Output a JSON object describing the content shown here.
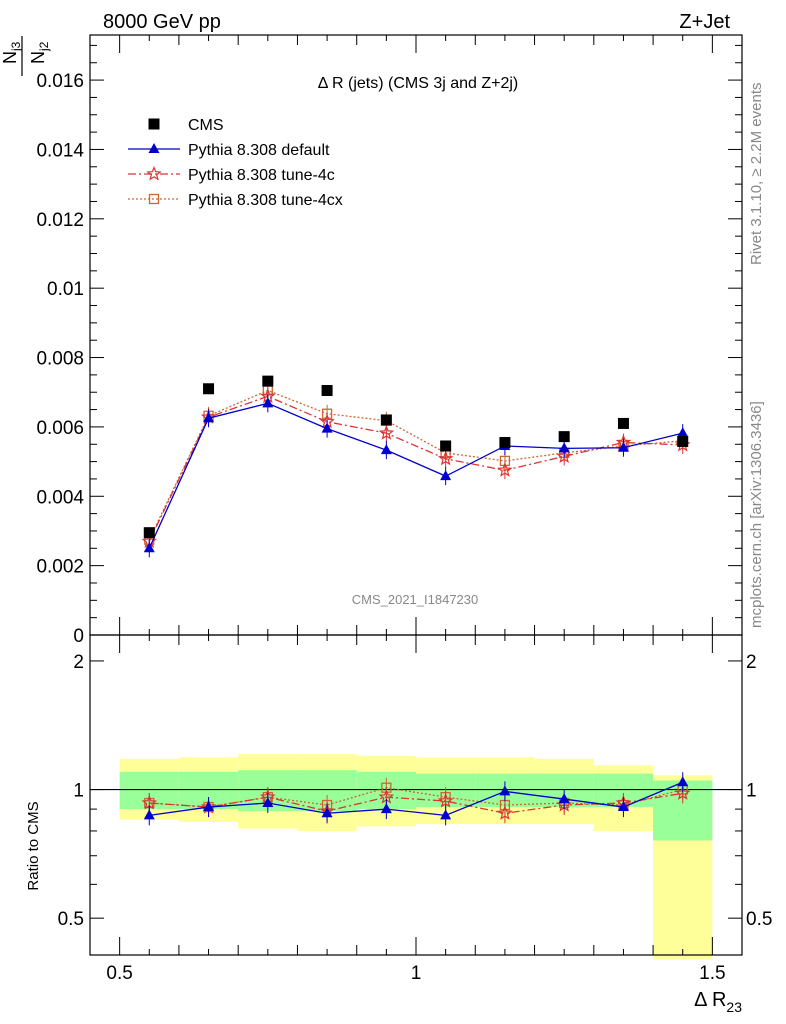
{
  "header": {
    "left": "8000 GeV pp",
    "right": "Z+Jet"
  },
  "side_text": {
    "rivet": "Rivet 3.1.10, ≥ 2.2M events",
    "mcplots": "mcplots.cern.ch [arXiv:1306.3436]"
  },
  "chart_data": [
    {
      "type": "scatter",
      "title": "Δ R (jets) (CMS 3j and Z+2j)",
      "watermark": "CMS_2021_I1847230",
      "ylabel": "N_j3 / N_j2",
      "ylim": [
        0,
        0.0173
      ],
      "yticks": [
        "0",
        "0.002",
        "0.004",
        "0.006",
        "0.008",
        "0.01",
        "0.012",
        "0.014",
        "0.016"
      ],
      "xlim": [
        0.45,
        1.55
      ],
      "legend_position": "top-left",
      "x": [
        0.55,
        0.65,
        0.75,
        0.85,
        0.95,
        1.05,
        1.15,
        1.25,
        1.35,
        1.45
      ],
      "series": [
        {
          "name": "CMS",
          "color": "#000000",
          "marker": "square",
          "values": [
            0.00295,
            0.0071,
            0.00732,
            0.00705,
            0.0062,
            0.00545,
            0.00555,
            0.00572,
            0.0061,
            0.00558
          ]
        },
        {
          "name": "Pythia 8.308 default",
          "color": "#0000cc",
          "marker": "triangle",
          "line": "solid",
          "values": [
            0.0025,
            0.00625,
            0.00668,
            0.00595,
            0.00533,
            0.00458,
            0.00545,
            0.00538,
            0.0054,
            0.00582
          ]
        },
        {
          "name": "Pythia 8.308 tune-4c",
          "color": "#dd3333",
          "marker": "star",
          "line": "dashdot",
          "values": [
            0.0027,
            0.00628,
            0.00688,
            0.00615,
            0.00582,
            0.00508,
            0.00475,
            0.00515,
            0.00555,
            0.00548
          ]
        },
        {
          "name": "Pythia 8.308 tune-4cx",
          "color": "#cc6633",
          "marker": "open-square",
          "line": "dotted",
          "values": [
            0.00275,
            0.00632,
            0.00705,
            0.00638,
            0.00618,
            0.00525,
            0.00502,
            0.00525,
            0.00545,
            0.0056
          ]
        }
      ]
    },
    {
      "type": "line",
      "ylabel": "Ratio to CMS",
      "ylim": [
        0.41,
        2.3
      ],
      "yticks": [
        "0.5",
        "1",
        "2"
      ],
      "xlabel": "Δ R23",
      "xlim": [
        0.45,
        1.55
      ],
      "xticks": [
        "0.5",
        "1",
        "1.5"
      ],
      "bins": [
        [
          0.5,
          0.6
        ],
        [
          0.6,
          0.7
        ],
        [
          0.7,
          0.8
        ],
        [
          0.8,
          0.9
        ],
        [
          0.9,
          1.0
        ],
        [
          1.0,
          1.1
        ],
        [
          1.1,
          1.2
        ],
        [
          1.2,
          1.3
        ],
        [
          1.3,
          1.4
        ],
        [
          1.4,
          1.5
        ]
      ],
      "band_green": [
        [
          0.9,
          1.1
        ],
        [
          0.9,
          1.1
        ],
        [
          0.89,
          1.11
        ],
        [
          0.89,
          1.11
        ],
        [
          0.9,
          1.1
        ],
        [
          0.91,
          1.09
        ],
        [
          0.91,
          1.09
        ],
        [
          0.91,
          1.09
        ],
        [
          0.91,
          1.09
        ],
        [
          0.76,
          1.05
        ]
      ],
      "band_yellow": [
        [
          0.85,
          1.18
        ],
        [
          0.84,
          1.19
        ],
        [
          0.81,
          1.21
        ],
        [
          0.8,
          1.21
        ],
        [
          0.82,
          1.2
        ],
        [
          0.83,
          1.19
        ],
        [
          0.83,
          1.19
        ],
        [
          0.83,
          1.18
        ],
        [
          0.8,
          1.14
        ],
        [
          0.4,
          1.08
        ]
      ],
      "x": [
        0.55,
        0.65,
        0.75,
        0.85,
        0.95,
        1.05,
        1.15,
        1.25,
        1.35,
        1.45
      ],
      "series": [
        {
          "name": "Pythia 8.308 default",
          "color": "#0000cc",
          "values": [
            0.87,
            0.91,
            0.93,
            0.88,
            0.9,
            0.87,
            0.99,
            0.95,
            0.91,
            1.04
          ]
        },
        {
          "name": "Pythia 8.308 tune-4c",
          "color": "#dd3333",
          "values": [
            0.93,
            0.91,
            0.96,
            0.89,
            0.96,
            0.94,
            0.88,
            0.92,
            0.93,
            0.98
          ]
        },
        {
          "name": "Pythia 8.308 tune-4cx",
          "color": "#cc6633",
          "values": [
            0.93,
            0.91,
            0.96,
            0.92,
            1.01,
            0.96,
            0.92,
            0.93,
            0.92,
            1.0
          ]
        }
      ]
    }
  ]
}
